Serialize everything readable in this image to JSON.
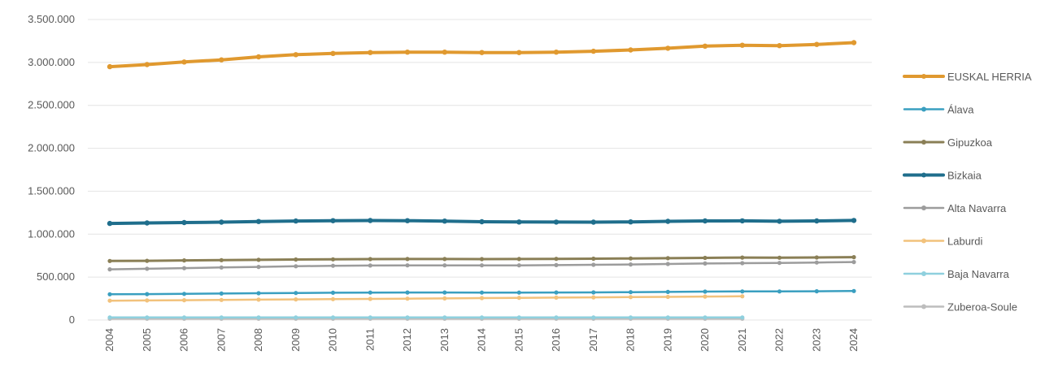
{
  "chart_data": {
    "type": "line",
    "title": "",
    "xlabel": "",
    "ylabel": "",
    "ylim": [
      0,
      3500000
    ],
    "y_ticks": [
      {
        "value": 0,
        "label": "0"
      },
      {
        "value": 500000,
        "label": "500.000"
      },
      {
        "value": 1000000,
        "label": "1.000.000"
      },
      {
        "value": 1500000,
        "label": "1.500.000"
      },
      {
        "value": 2000000,
        "label": "2.000.000"
      },
      {
        "value": 2500000,
        "label": "2.500.000"
      },
      {
        "value": 3000000,
        "label": "3.000.000"
      },
      {
        "value": 3500000,
        "label": "3.500.000"
      }
    ],
    "grid": true,
    "legend_position": "right",
    "categories": [
      "2004",
      "2005",
      "2006",
      "2007",
      "2008",
      "2009",
      "2010",
      "2011",
      "2012",
      "2013",
      "2014",
      "2015",
      "2016",
      "2017",
      "2018",
      "2019",
      "2020",
      "2021",
      "2022",
      "2023",
      "2024"
    ],
    "series": [
      {
        "name": "EUSKAL HERRIA",
        "color": "#E0992F",
        "width": 4,
        "values": [
          2950000,
          2975000,
          3005000,
          3030000,
          3065000,
          3090000,
          3105000,
          3115000,
          3120000,
          3120000,
          3115000,
          3115000,
          3120000,
          3130000,
          3145000,
          3165000,
          3190000,
          3200000,
          3195000,
          3210000,
          3230000
        ]
      },
      {
        "name": "Álava",
        "color": "#3A9FC0",
        "width": 2.5,
        "values": [
          300000,
          302000,
          305000,
          308000,
          312000,
          315000,
          318000,
          320000,
          321000,
          321000,
          320000,
          320000,
          321000,
          322000,
          324000,
          327000,
          331000,
          333000,
          333000,
          335000,
          338000
        ]
      },
      {
        "name": "Gipuzkoa",
        "color": "#8A7F56",
        "width": 3,
        "values": [
          688000,
          690000,
          694000,
          697000,
          701000,
          705000,
          707000,
          709000,
          710000,
          710000,
          709000,
          710000,
          712000,
          714000,
          717000,
          720000,
          724000,
          727000,
          726000,
          728000,
          732000
        ]
      },
      {
        "name": "Bizkaia",
        "color": "#1F6E8C",
        "width": 4,
        "values": [
          1125000,
          1130000,
          1135000,
          1140000,
          1147000,
          1153000,
          1157000,
          1159000,
          1157000,
          1152000,
          1145000,
          1142000,
          1141000,
          1140000,
          1143000,
          1149000,
          1154000,
          1155000,
          1150000,
          1154000,
          1160000
        ]
      },
      {
        "name": "Alta Navarra",
        "color": "#9C9C9C",
        "width": 2.5,
        "values": [
          590000,
          597000,
          604000,
          612000,
          619000,
          626000,
          632000,
          635000,
          637000,
          637000,
          637000,
          637000,
          639000,
          643000,
          647000,
          653000,
          658000,
          662000,
          665000,
          670000,
          675000
        ]
      },
      {
        "name": "Laburdi",
        "color": "#F2C27C",
        "width": 2.5,
        "values": [
          225000,
          228000,
          231000,
          234000,
          237000,
          240000,
          243000,
          246000,
          249000,
          252000,
          255000,
          258000,
          261000,
          264000,
          267000,
          270000,
          273000,
          276000,
          null,
          null,
          null
        ]
      },
      {
        "name": "Baja Navarra",
        "color": "#8FD0DE",
        "width": 2.5,
        "values": [
          30000,
          30000,
          30000,
          30000,
          30000,
          30000,
          30000,
          30000,
          30000,
          30000,
          30000,
          30000,
          30000,
          30000,
          30000,
          30000,
          30000,
          30000,
          null,
          null,
          null
        ]
      },
      {
        "name": "Zuberoa-Soule",
        "color": "#BDBDBD",
        "width": 2.5,
        "values": [
          15000,
          15000,
          15000,
          15000,
          15000,
          15000,
          15000,
          15000,
          15000,
          15000,
          15000,
          15000,
          15000,
          15000,
          15000,
          15000,
          15000,
          15000,
          null,
          null,
          null
        ]
      }
    ]
  }
}
